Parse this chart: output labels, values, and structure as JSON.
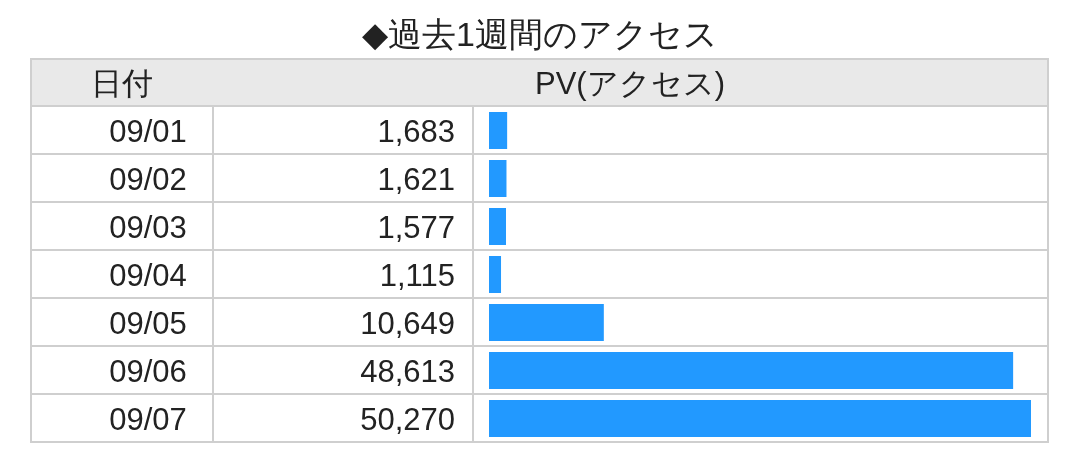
{
  "chart_data": {
    "type": "bar",
    "orientation": "horizontal",
    "title": "◆過去1週間のアクセス",
    "ylabel": "日付",
    "xlabel": "PV(アクセス)",
    "categories": [
      "09/01",
      "09/02",
      "09/03",
      "09/04",
      "09/05",
      "09/06",
      "09/07"
    ],
    "values": [
      1683,
      1621,
      1577,
      1115,
      10649,
      48613,
      50270
    ],
    "value_labels": [
      "1,683",
      "1,621",
      "1,577",
      "1,115",
      "10,649",
      "48,613",
      "50,270"
    ],
    "color": "#2299ff"
  }
}
